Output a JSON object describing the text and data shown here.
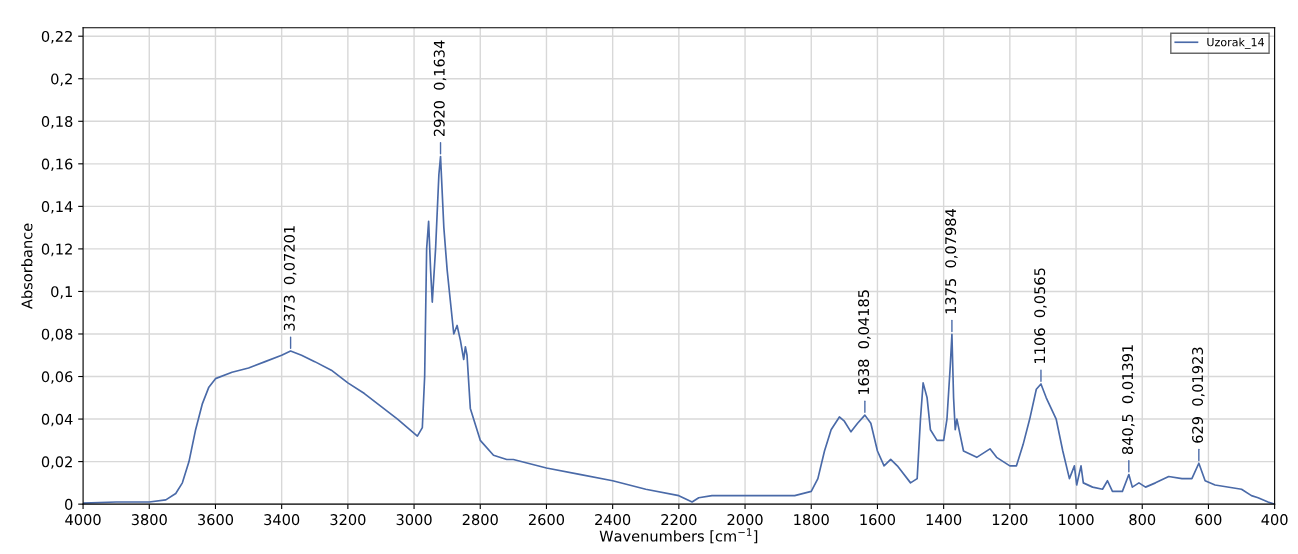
{
  "chart_data": {
    "type": "line",
    "xlabel": "Wavenumbers [cm$^{−1}$]",
    "ylabel": "Absorbance",
    "xlim": [
      4000,
      400
    ],
    "ylim": [
      0,
      0.224
    ],
    "xticks": [
      4000,
      3800,
      3600,
      3400,
      3200,
      3000,
      2800,
      2600,
      2400,
      2200,
      2000,
      1800,
      1600,
      1400,
      1200,
      1000,
      800,
      600,
      400
    ],
    "yticks": [
      0,
      {
        "value": 0.02,
        "label": "0,02"
      },
      {
        "value": 0.04,
        "label": "0,04"
      },
      {
        "value": 0.06,
        "label": "0,06"
      },
      {
        "value": 0.08,
        "label": "0,08"
      },
      {
        "value": 0.1,
        "label": "0,1"
      },
      {
        "value": 0.12,
        "label": "0,12"
      },
      {
        "value": 0.14,
        "label": "0,14"
      },
      {
        "value": 0.16,
        "label": "0,16"
      },
      {
        "value": 0.18,
        "label": "0,18"
      },
      {
        "value": 0.2,
        "label": "0,2"
      },
      {
        "value": 0.22,
        "label": "0,22"
      }
    ],
    "grid": true,
    "legend": "top right",
    "series": [
      {
        "name": "Uzorak_14",
        "color": "#4a6aa8",
        "x": [
          4000,
          3900,
          3800,
          3750,
          3720,
          3700,
          3680,
          3660,
          3640,
          3620,
          3600,
          3550,
          3500,
          3450,
          3400,
          3373,
          3340,
          3300,
          3250,
          3200,
          3150,
          3100,
          3050,
          3020,
          2990,
          2975,
          2968,
          2962,
          2956,
          2950,
          2945,
          2935,
          2925,
          2920,
          2910,
          2900,
          2880,
          2870,
          2860,
          2850,
          2845,
          2840,
          2830,
          2800,
          2760,
          2720,
          2700,
          2600,
          2500,
          2400,
          2300,
          2200,
          2160,
          2140,
          2100,
          2000,
          1900,
          1850,
          1800,
          1780,
          1760,
          1740,
          1715,
          1700,
          1680,
          1660,
          1638,
          1620,
          1600,
          1580,
          1560,
          1540,
          1500,
          1480,
          1470,
          1462,
          1450,
          1440,
          1420,
          1400,
          1390,
          1380,
          1375,
          1370,
          1365,
          1360,
          1340,
          1300,
          1260,
          1240,
          1200,
          1180,
          1160,
          1140,
          1120,
          1106,
          1090,
          1060,
          1040,
          1020,
          1005,
          998,
          985,
          978,
          950,
          920,
          905,
          890,
          860,
          840.5,
          830,
          810,
          790,
          760,
          720,
          680,
          650,
          629,
          610,
          580,
          500,
          470,
          450,
          420,
          400
        ],
        "values": [
          0.0005,
          0.001,
          0.001,
          0.002,
          0.005,
          0.01,
          0.02,
          0.035,
          0.047,
          0.055,
          0.059,
          0.062,
          0.064,
          0.067,
          0.07,
          0.07201,
          0.07,
          0.067,
          0.063,
          0.057,
          0.052,
          0.046,
          0.04,
          0.036,
          0.032,
          0.036,
          0.06,
          0.12,
          0.133,
          0.11,
          0.095,
          0.12,
          0.155,
          0.1634,
          0.13,
          0.11,
          0.08,
          0.084,
          0.077,
          0.068,
          0.074,
          0.07,
          0.045,
          0.03,
          0.023,
          0.021,
          0.021,
          0.017,
          0.014,
          0.011,
          0.007,
          0.004,
          0.001,
          0.003,
          0.004,
          0.004,
          0.004,
          0.004,
          0.006,
          0.012,
          0.025,
          0.035,
          0.041,
          0.039,
          0.034,
          0.038,
          0.04185,
          0.038,
          0.025,
          0.018,
          0.021,
          0.018,
          0.01,
          0.012,
          0.04,
          0.057,
          0.05,
          0.035,
          0.03,
          0.03,
          0.04,
          0.065,
          0.07984,
          0.05,
          0.035,
          0.04,
          0.025,
          0.022,
          0.026,
          0.022,
          0.018,
          0.018,
          0.028,
          0.04,
          0.054,
          0.0565,
          0.05,
          0.04,
          0.025,
          0.012,
          0.018,
          0.009,
          0.018,
          0.01,
          0.008,
          0.007,
          0.011,
          0.006,
          0.006,
          0.01391,
          0.008,
          0.01,
          0.008,
          0.01,
          0.013,
          0.012,
          0.012,
          0.01923,
          0.011,
          0.009,
          0.007,
          0.004,
          0.003,
          0.001,
          0
        ]
      }
    ],
    "annotations": [
      {
        "text": "3373  0,07201",
        "x": 3373,
        "y": 0.07201
      },
      {
        "text": "2920  0,1634",
        "x": 2920,
        "y": 0.1634
      },
      {
        "text": "1638  0,04185",
        "x": 1638,
        "y": 0.04185
      },
      {
        "text": "1375  0,07984",
        "x": 1375,
        "y": 0.07984
      },
      {
        "text": "1106  0,0565",
        "x": 1106,
        "y": 0.0565
      },
      {
        "text": "840,5  0,01391",
        "x": 840.5,
        "y": 0.01391
      },
      {
        "text": "629  0,01923",
        "x": 629,
        "y": 0.01923
      }
    ]
  }
}
